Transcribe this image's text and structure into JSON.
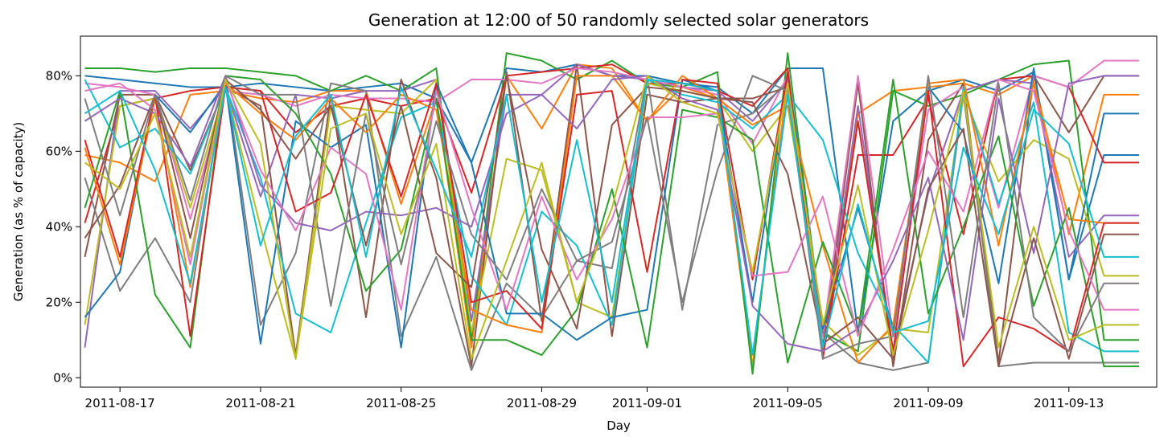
{
  "chart_data": {
    "type": "line",
    "title": "Generation at 12:00 of 50 randomly selected solar generators",
    "xlabel": "Day",
    "ylabel": "Generation (as % of capacity)",
    "x_type": "date",
    "xlim": [
      "2011-08-15T21:00",
      "2011-09-15T12:00"
    ],
    "ylim": [
      -0.025,
      0.905
    ],
    "x_tick_labels": [
      "2011-08-17",
      "2011-08-21",
      "2011-08-25",
      "2011-08-29",
      "2011-09-01",
      "2011-09-05",
      "2011-09-09",
      "2011-09-13"
    ],
    "y_tick_labels": [
      "0%",
      "20%",
      "40%",
      "60%",
      "80%"
    ],
    "y_tick_values": [
      0,
      0.2,
      0.4,
      0.6,
      0.8
    ],
    "grid": false,
    "legend": "none",
    "colors": [
      "#1f77b4",
      "#ff7f0e",
      "#2ca02c",
      "#d62728",
      "#9467bd",
      "#8c564b",
      "#e377c2",
      "#7f7f7f",
      "#bcbd22",
      "#17becf"
    ],
    "x": [
      "2011-08-16",
      "2011-08-17",
      "2011-08-18",
      "2011-08-19",
      "2011-08-20",
      "2011-08-21",
      "2011-08-22",
      "2011-08-23",
      "2011-08-24",
      "2011-08-25",
      "2011-08-26",
      "2011-08-27",
      "2011-08-28",
      "2011-08-29",
      "2011-08-30",
      "2011-08-31",
      "2011-09-01",
      "2011-09-02",
      "2011-09-03",
      "2011-09-04",
      "2011-09-05",
      "2011-09-06",
      "2011-09-07",
      "2011-09-08",
      "2011-09-09",
      "2011-09-10",
      "2011-09-11",
      "2011-09-12",
      "2011-09-13",
      "2011-09-14",
      "2011-09-15"
    ],
    "series": [
      {
        "values": [
          0.8,
          0.79,
          0.78,
          0.77,
          0.77,
          0.78,
          0.77,
          0.76,
          0.77,
          0.78,
          0.74,
          0.57,
          0.82,
          0.81,
          0.83,
          0.8,
          0.8,
          0.78,
          0.77,
          0.7,
          0.82,
          0.82,
          0.12,
          0.68,
          0.76,
          0.79,
          0.76,
          0.81,
          0.26,
          0.59,
          0.59
        ]
      },
      {
        "values": [
          0.59,
          0.57,
          0.52,
          0.75,
          0.76,
          0.74,
          0.73,
          0.76,
          0.76,
          0.46,
          0.74,
          0.08,
          0.8,
          0.66,
          0.83,
          0.82,
          0.68,
          0.77,
          0.74,
          0.03,
          0.79,
          0.08,
          0.7,
          0.76,
          0.77,
          0.78,
          0.75,
          0.8,
          0.38,
          0.75,
          0.75
        ]
      },
      {
        "values": [
          0.82,
          0.82,
          0.81,
          0.82,
          0.82,
          0.81,
          0.8,
          0.76,
          0.8,
          0.76,
          0.82,
          0.1,
          0.86,
          0.84,
          0.79,
          0.84,
          0.78,
          0.77,
          0.81,
          0.01,
          0.86,
          0.12,
          0.07,
          0.76,
          0.72,
          0.75,
          0.79,
          0.83,
          0.84,
          0.1,
          0.1
        ]
      },
      {
        "values": [
          0.41,
          0.72,
          0.74,
          0.76,
          0.77,
          0.76,
          0.65,
          0.72,
          0.74,
          0.72,
          0.74,
          0.49,
          0.8,
          0.81,
          0.82,
          0.83,
          0.78,
          0.78,
          0.76,
          0.72,
          0.82,
          0.06,
          0.59,
          0.59,
          0.74,
          0.38,
          0.79,
          0.8,
          0.77,
          0.57,
          0.57
        ]
      },
      {
        "values": [
          0.08,
          0.76,
          0.76,
          0.66,
          0.77,
          0.48,
          0.75,
          0.74,
          0.76,
          0.76,
          0.79,
          0.15,
          0.75,
          0.75,
          0.83,
          0.8,
          0.79,
          0.77,
          0.76,
          0.68,
          0.79,
          0.07,
          0.72,
          0.07,
          0.49,
          0.76,
          0.79,
          0.78,
          0.32,
          0.43,
          0.43
        ]
      },
      {
        "values": [
          0.32,
          0.75,
          0.75,
          0.55,
          0.77,
          0.72,
          0.06,
          0.75,
          0.16,
          0.79,
          0.53,
          0.03,
          0.81,
          0.15,
          0.83,
          0.11,
          0.75,
          0.73,
          0.74,
          0.74,
          0.77,
          0.08,
          0.78,
          0.03,
          0.63,
          0.78,
          0.04,
          0.8,
          0.65,
          0.8,
          0.8
        ]
      },
      {
        "values": [
          0.78,
          0.77,
          0.75,
          0.42,
          0.76,
          0.75,
          0.72,
          0.75,
          0.74,
          0.74,
          0.73,
          0.79,
          0.79,
          0.78,
          0.82,
          0.81,
          0.79,
          0.77,
          0.75,
          0.62,
          0.8,
          0.11,
          0.8,
          0.11,
          0.71,
          0.77,
          0.45,
          0.8,
          0.77,
          0.84,
          0.84
        ]
      },
      {
        "values": [
          0.53,
          0.23,
          0.37,
          0.2,
          0.8,
          0.14,
          0.33,
          0.78,
          0.76,
          0.11,
          0.32,
          0.02,
          0.25,
          0.16,
          0.31,
          0.29,
          0.8,
          0.18,
          0.67,
          0.7,
          0.78,
          0.12,
          0.04,
          0.02,
          0.04,
          0.75,
          0.03,
          0.04,
          0.04,
          0.04,
          0.04
        ]
      },
      {
        "values": [
          0.14,
          0.72,
          0.74,
          0.45,
          0.77,
          0.4,
          0.05,
          0.72,
          0.71,
          0.7,
          0.79,
          0.12,
          0.58,
          0.55,
          0.2,
          0.16,
          0.78,
          0.76,
          0.74,
          0.6,
          0.72,
          0.15,
          0.06,
          0.13,
          0.12,
          0.75,
          0.52,
          0.63,
          0.58,
          0.27,
          0.27
        ]
      },
      {
        "values": [
          0.79,
          0.61,
          0.66,
          0.54,
          0.77,
          0.53,
          0.17,
          0.12,
          0.41,
          0.69,
          0.73,
          0.27,
          0.14,
          0.44,
          0.35,
          0.14,
          0.79,
          0.75,
          0.73,
          0.66,
          0.75,
          0.63,
          0.33,
          0.14,
          0.04,
          0.77,
          0.46,
          0.73,
          0.12,
          0.07,
          0.07
        ]
      },
      {
        "values": [
          0.16,
          0.28,
          0.75,
          0.65,
          0.78,
          0.09,
          0.68,
          0.61,
          0.67,
          0.08,
          0.78,
          0.57,
          0.17,
          0.17,
          0.1,
          0.16,
          0.18,
          0.79,
          0.76,
          0.2,
          0.81,
          0.13,
          0.45,
          0.13,
          0.77,
          0.65,
          0.25,
          0.82,
          0.26,
          0.7,
          0.7
        ]
      },
      {
        "values": [
          0.61,
          0.3,
          0.74,
          0.24,
          0.78,
          0.7,
          0.63,
          0.74,
          0.65,
          0.75,
          0.71,
          0.18,
          0.14,
          0.12,
          0.8,
          0.8,
          0.68,
          0.8,
          0.74,
          0.67,
          0.72,
          0.35,
          0.04,
          0.14,
          0.78,
          0.79,
          0.35,
          0.78,
          0.42,
          0.41,
          0.41
        ]
      },
      {
        "values": [
          0.45,
          0.76,
          0.22,
          0.08,
          0.8,
          0.79,
          0.7,
          0.54,
          0.23,
          0.34,
          0.74,
          0.1,
          0.1,
          0.06,
          0.18,
          0.5,
          0.08,
          0.71,
          0.69,
          0.63,
          0.04,
          0.36,
          0.12,
          0.79,
          0.17,
          0.4,
          0.64,
          0.19,
          0.45,
          0.03,
          0.03
        ]
      },
      {
        "values": [
          0.63,
          0.32,
          0.75,
          0.11,
          0.77,
          0.76,
          0.44,
          0.49,
          0.75,
          0.48,
          0.78,
          0.2,
          0.23,
          0.13,
          0.75,
          0.76,
          0.28,
          0.79,
          0.78,
          0.26,
          0.81,
          0.05,
          0.68,
          0.07,
          0.76,
          0.03,
          0.16,
          0.13,
          0.07,
          0.41,
          0.41
        ]
      },
      {
        "values": [
          0.68,
          0.74,
          0.7,
          0.56,
          0.8,
          0.51,
          0.41,
          0.39,
          0.44,
          0.43,
          0.45,
          0.4,
          0.7,
          0.75,
          0.66,
          0.79,
          0.8,
          0.74,
          0.71,
          0.19,
          0.09,
          0.07,
          0.13,
          0.31,
          0.53,
          0.1,
          0.74,
          0.33,
          0.78,
          0.8,
          0.8
        ]
      },
      {
        "values": [
          0.37,
          0.51,
          0.75,
          0.37,
          0.79,
          0.71,
          0.58,
          0.72,
          0.35,
          0.72,
          0.33,
          0.24,
          0.8,
          0.34,
          0.13,
          0.67,
          0.77,
          0.76,
          0.74,
          0.73,
          0.54,
          0.09,
          0.16,
          0.05,
          0.5,
          0.66,
          0.03,
          0.37,
          0.05,
          0.38,
          0.38
        ]
      },
      {
        "values": [
          0.76,
          0.78,
          0.71,
          0.3,
          0.79,
          0.55,
          0.39,
          0.61,
          0.54,
          0.18,
          0.76,
          0.45,
          0.18,
          0.48,
          0.26,
          0.42,
          0.69,
          0.69,
          0.7,
          0.27,
          0.28,
          0.48,
          0.11,
          0.34,
          0.6,
          0.44,
          0.79,
          0.76,
          0.39,
          0.18,
          0.18
        ]
      },
      {
        "values": [
          0.74,
          0.43,
          0.75,
          0.47,
          0.8,
          0.75,
          0.75,
          0.19,
          0.7,
          0.3,
          0.68,
          0.38,
          0.26,
          0.5,
          0.31,
          0.36,
          0.69,
          0.2,
          0.55,
          0.8,
          0.76,
          0.05,
          0.09,
          0.11,
          0.8,
          0.16,
          0.78,
          0.16,
          0.07,
          0.25,
          0.25
        ]
      },
      {
        "values": [
          0.57,
          0.5,
          0.7,
          0.32,
          0.79,
          0.62,
          0.05,
          0.66,
          0.7,
          0.38,
          0.62,
          0.05,
          0.31,
          0.57,
          0.2,
          0.45,
          0.8,
          0.73,
          0.7,
          0.28,
          0.78,
          0.14,
          0.51,
          0.06,
          0.39,
          0.76,
          0.08,
          0.4,
          0.1,
          0.14,
          0.14
        ]
      },
      {
        "values": [
          0.7,
          0.76,
          0.55,
          0.25,
          0.77,
          0.35,
          0.64,
          0.75,
          0.32,
          0.77,
          0.55,
          0.32,
          0.75,
          0.2,
          0.63,
          0.2,
          0.79,
          0.78,
          0.76,
          0.06,
          0.75,
          0.08,
          0.46,
          0.12,
          0.15,
          0.61,
          0.38,
          0.71,
          0.62,
          0.32,
          0.32
        ]
      }
    ]
  }
}
